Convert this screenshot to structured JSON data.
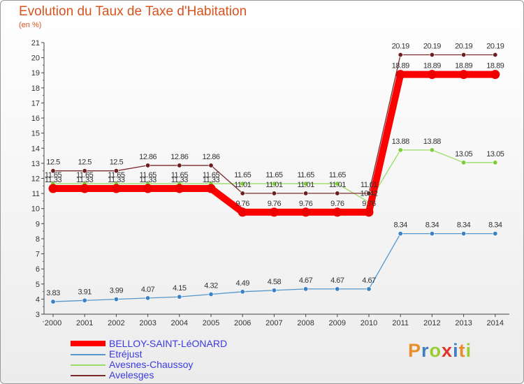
{
  "chart_data": {
    "type": "line",
    "title": "Evolution du Taux de Taxe d'Habitation",
    "subtitle": "(en %)",
    "x": [
      "2000",
      "2001",
      "2002",
      "2003",
      "2004",
      "2005",
      "2006",
      "2007",
      "2008",
      "2009",
      "2010",
      "2011",
      "2012",
      "2013",
      "2014"
    ],
    "ylim": [
      3,
      21
    ],
    "yticks": [
      3,
      4,
      5,
      6,
      7,
      8,
      9,
      10,
      11,
      12,
      13,
      14,
      15,
      16,
      17,
      18,
      19,
      20,
      21
    ],
    "grid": false,
    "legend_position": "bottom-left",
    "series": [
      {
        "name": "BELLOY-SAINT-LéONARD",
        "color": "#ff0000",
        "values": [
          11.33,
          11.33,
          11.33,
          11.33,
          11.33,
          11.33,
          9.76,
          9.76,
          9.76,
          9.76,
          9.76,
          18.89,
          18.89,
          18.89,
          18.89
        ],
        "labels": [
          "11.33",
          "11.33",
          "11.33",
          "11.33",
          "11.33",
          "11.33",
          "9.76",
          "9.76",
          "9.76",
          "9.76",
          "9.76",
          "18.89",
          "18.89",
          "18.89",
          "18.89"
        ]
      },
      {
        "name": "Etréjust",
        "color": "#5596cb",
        "values": [
          3.83,
          3.91,
          3.99,
          4.07,
          4.15,
          4.32,
          4.49,
          4.58,
          4.67,
          4.67,
          4.67,
          8.34,
          8.34,
          8.34,
          8.34
        ],
        "labels": [
          "3.83",
          "3.91",
          "3.99",
          "4.07",
          "4.15",
          "4.32",
          "4.49",
          "4.58",
          "4.67",
          "4.67",
          "4.67",
          "8.34",
          "8.34",
          "8.34",
          "8.34"
        ]
      },
      {
        "name": "Avesnes-Chaussoy",
        "color": "#99dd66",
        "values": [
          11.65,
          11.65,
          11.65,
          11.65,
          11.65,
          11.65,
          11.65,
          11.65,
          11.65,
          11.65,
          10.42,
          13.88,
          13.88,
          13.05,
          13.05
        ],
        "labels": [
          "11.65",
          "11.65",
          "11.65",
          "11.65",
          "11.65",
          "11.65",
          "11.65",
          "11.65",
          "11.65",
          "11.65",
          "10.42",
          "13.88",
          "13.88",
          "13.05",
          "13.05"
        ]
      },
      {
        "name": "Avelesges",
        "color": "#7a2c2c",
        "values": [
          12.5,
          12.5,
          12.5,
          12.86,
          12.86,
          12.86,
          11.01,
          11.01,
          11.01,
          11.01,
          11.01,
          20.19,
          20.19,
          20.19,
          20.19
        ],
        "labels": [
          "12.5",
          "12.5",
          "12.5",
          "12.86",
          "12.86",
          "12.86",
          "11.01",
          "11.01",
          "11.01",
          "11.01",
          "11.01",
          "20.19",
          "20.19",
          "20.19",
          "20.19"
        ]
      }
    ]
  },
  "logo": {
    "letters": [
      "P",
      "r",
      "o",
      "x",
      "i",
      "t",
      "i"
    ],
    "colors": [
      "#e98d2a",
      "#3d7fc1",
      "#9acd32",
      "#e0332a",
      "#3d7fc1",
      "#e98d2a",
      "#9acd32"
    ]
  }
}
